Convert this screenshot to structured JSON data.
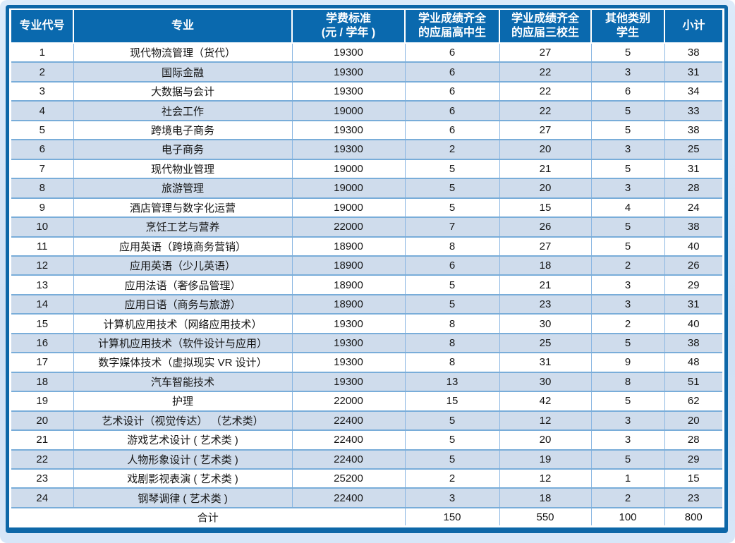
{
  "table": {
    "title_semantic": "enrollment-plan-and-tuition-table",
    "headers": [
      {
        "line1": "专业代号"
      },
      {
        "line1": "专业"
      },
      {
        "line1": "学费标准",
        "line2": "(元 / 学年 )"
      },
      {
        "line1": "学业成绩齐全",
        "line2": "的应届高中生"
      },
      {
        "line1": "学业成绩齐全",
        "line2": "的应届三校生"
      },
      {
        "line1": "其他类别",
        "line2": "学生"
      },
      {
        "line1": "小计"
      }
    ],
    "rows": [
      [
        "1",
        "现代物流管理（货代）",
        "19300",
        "6",
        "27",
        "5",
        "38"
      ],
      [
        "2",
        "国际金融",
        "19300",
        "6",
        "22",
        "3",
        "31"
      ],
      [
        "3",
        "大数据与会计",
        "19300",
        "6",
        "22",
        "6",
        "34"
      ],
      [
        "4",
        "社会工作",
        "19000",
        "6",
        "22",
        "5",
        "33"
      ],
      [
        "5",
        "跨境电子商务",
        "19300",
        "6",
        "27",
        "5",
        "38"
      ],
      [
        "6",
        "电子商务",
        "19300",
        "2",
        "20",
        "3",
        "25"
      ],
      [
        "7",
        "现代物业管理",
        "19000",
        "5",
        "21",
        "5",
        "31"
      ],
      [
        "8",
        "旅游管理",
        "19000",
        "5",
        "20",
        "3",
        "28"
      ],
      [
        "9",
        "酒店管理与数字化运营",
        "19000",
        "5",
        "15",
        "4",
        "24"
      ],
      [
        "10",
        "烹饪工艺与营养",
        "22000",
        "7",
        "26",
        "5",
        "38"
      ],
      [
        "11",
        "应用英语（跨境商务营销）",
        "18900",
        "8",
        "27",
        "5",
        "40"
      ],
      [
        "12",
        "应用英语（少儿英语）",
        "18900",
        "6",
        "18",
        "2",
        "26"
      ],
      [
        "13",
        "应用法语（奢侈品管理）",
        "18900",
        "5",
        "21",
        "3",
        "29"
      ],
      [
        "14",
        "应用日语（商务与旅游）",
        "18900",
        "5",
        "23",
        "3",
        "31"
      ],
      [
        "15",
        "计算机应用技术（网络应用技术）",
        "19300",
        "8",
        "30",
        "2",
        "40"
      ],
      [
        "16",
        "计算机应用技术（软件设计与应用）",
        "19300",
        "8",
        "25",
        "5",
        "38"
      ],
      [
        "17",
        "数字媒体技术（虚拟现实 VR 设计）",
        "19300",
        "8",
        "31",
        "9",
        "48"
      ],
      [
        "18",
        "汽车智能技术",
        "19300",
        "13",
        "30",
        "8",
        "51"
      ],
      [
        "19",
        "护理",
        "22000",
        "15",
        "42",
        "5",
        "62"
      ],
      [
        "20",
        "艺术设计（视觉传达） （艺术类）",
        "22400",
        "5",
        "12",
        "3",
        "20"
      ],
      [
        "21",
        "游戏艺术设计 ( 艺术类 )",
        "22400",
        "5",
        "20",
        "3",
        "28"
      ],
      [
        "22",
        "人物形象设计 ( 艺术类 )",
        "22400",
        "5",
        "19",
        "5",
        "29"
      ],
      [
        "23",
        "戏剧影视表演 ( 艺术类 )",
        "25200",
        "2",
        "12",
        "1",
        "15"
      ],
      [
        "24",
        "钢琴调律 ( 艺术类 )",
        "22400",
        "3",
        "18",
        "2",
        "23"
      ]
    ],
    "total": {
      "label": "合计",
      "values": [
        "150",
        "550",
        "100",
        "800"
      ]
    }
  },
  "colors": {
    "header_bg": "#0a69ae",
    "frame_border": "#0d67a8",
    "alt_row_bg": "#cfdcec",
    "grid_line_h": "#79add9",
    "grid_line_v": "#8ab6e2",
    "page_bg": "#d4e3f5",
    "header_text": "#ffffff",
    "body_text": "#151515"
  }
}
